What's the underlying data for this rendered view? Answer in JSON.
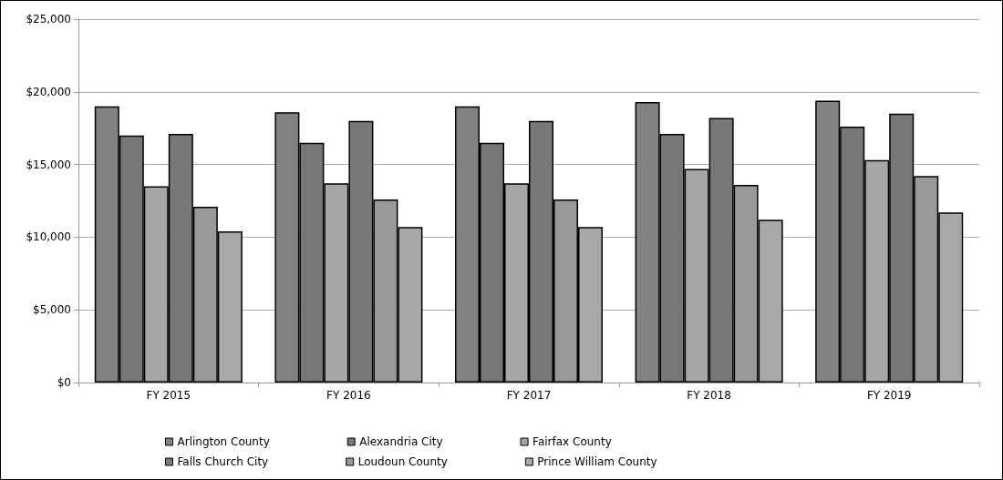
{
  "chart_data": {
    "type": "bar",
    "categories": [
      "FY 2015",
      "FY 2016",
      "FY 2017",
      "FY 2018",
      "FY 2019"
    ],
    "series": [
      {
        "name": "Arlington County",
        "color": "#828282",
        "values": [
          19000,
          18600,
          19000,
          19300,
          19400
        ]
      },
      {
        "name": "Alexandria City",
        "color": "#777777",
        "values": [
          17000,
          16500,
          16500,
          17100,
          17600
        ]
      },
      {
        "name": "Fairfax County",
        "color": "#a6a6a6",
        "values": [
          13500,
          13700,
          13700,
          14700,
          15300
        ]
      },
      {
        "name": "Falls Church City",
        "color": "#787878",
        "values": [
          17100,
          18000,
          18000,
          18200,
          18500
        ]
      },
      {
        "name": "Loudoun County",
        "color": "#999999",
        "values": [
          12100,
          12600,
          12600,
          13600,
          14200
        ]
      },
      {
        "name": "Prince William County",
        "color": "#a8a8a8",
        "values": [
          10400,
          10700,
          10700,
          11200,
          11700
        ]
      }
    ],
    "ylim": [
      0,
      25000
    ],
    "yticks": [
      {
        "value": 0,
        "label": "$0"
      },
      {
        "value": 5000,
        "label": "$5,000"
      },
      {
        "value": 10000,
        "label": "$10,000"
      },
      {
        "value": 15000,
        "label": "$15,000"
      },
      {
        "value": 20000,
        "label": "$20,000"
      },
      {
        "value": 25000,
        "label": "$25,000"
      }
    ],
    "grid": "y",
    "legend": "bottom"
  }
}
